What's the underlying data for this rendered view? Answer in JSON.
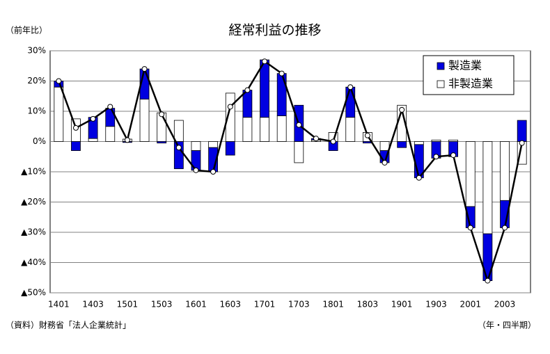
{
  "chart_data": {
    "type": "stacked-bar-line",
    "title": "経常利益の推移",
    "y_label": "（前年比）",
    "x_label": "（年・四半期）",
    "source": "（資料）財務省「法人企業統計」",
    "categories": [
      "1401",
      null,
      "1403",
      null,
      "1501",
      null,
      "1503",
      null,
      "1601",
      null,
      "1603",
      null,
      "1701",
      null,
      "1703",
      null,
      "1801",
      null,
      "1803",
      null,
      "1901",
      null,
      "1903",
      null,
      "2001",
      null,
      "2003",
      null
    ],
    "series": [
      {
        "name": "製造業",
        "color": "#0000e0",
        "values": [
          2,
          -3,
          7,
          6,
          -0.3,
          10,
          -0.5,
          -9,
          -6.5,
          -8,
          -4.5,
          9,
          19,
          14,
          12,
          0.5,
          -3,
          10,
          -0.5,
          -4,
          -2,
          -11,
          -5.5,
          -5,
          -7,
          -15.5,
          -9,
          7
        ]
      },
      {
        "name": "非製造業",
        "color": "#ffffff",
        "values": [
          18,
          7.5,
          1,
          5,
          0.8,
          14,
          9.5,
          7,
          -3,
          -2,
          16,
          8,
          8,
          8.5,
          -7,
          0.5,
          3,
          8,
          3,
          -3,
          12,
          -1,
          0.5,
          0.5,
          -21.5,
          -30.5,
          -19.5,
          -7.5
        ]
      }
    ],
    "total": {
      "color": "#000000",
      "values": [
        20,
        4.5,
        7.5,
        11.5,
        0.5,
        24,
        9,
        -2,
        -9.5,
        -10,
        11.5,
        17,
        26.5,
        22.5,
        5.5,
        1,
        0,
        18,
        2,
        -7,
        10.5,
        -12,
        -5,
        -4.5,
        -28.5,
        -46,
        -28.5,
        -0.5
      ]
    },
    "ylim": [
      -50,
      30
    ],
    "yticks": [
      {
        "value": 30,
        "label": "30%"
      },
      {
        "value": 20,
        "label": "20%"
      },
      {
        "value": 10,
        "label": "10%"
      },
      {
        "value": 0,
        "label": "0%"
      },
      {
        "value": -10,
        "label": "▲10%"
      },
      {
        "value": -20,
        "label": "▲20%"
      },
      {
        "value": -30,
        "label": "▲30%"
      },
      {
        "value": -40,
        "label": "▲40%"
      },
      {
        "value": -50,
        "label": "▲50%"
      }
    ],
    "legend": "upper right"
  }
}
